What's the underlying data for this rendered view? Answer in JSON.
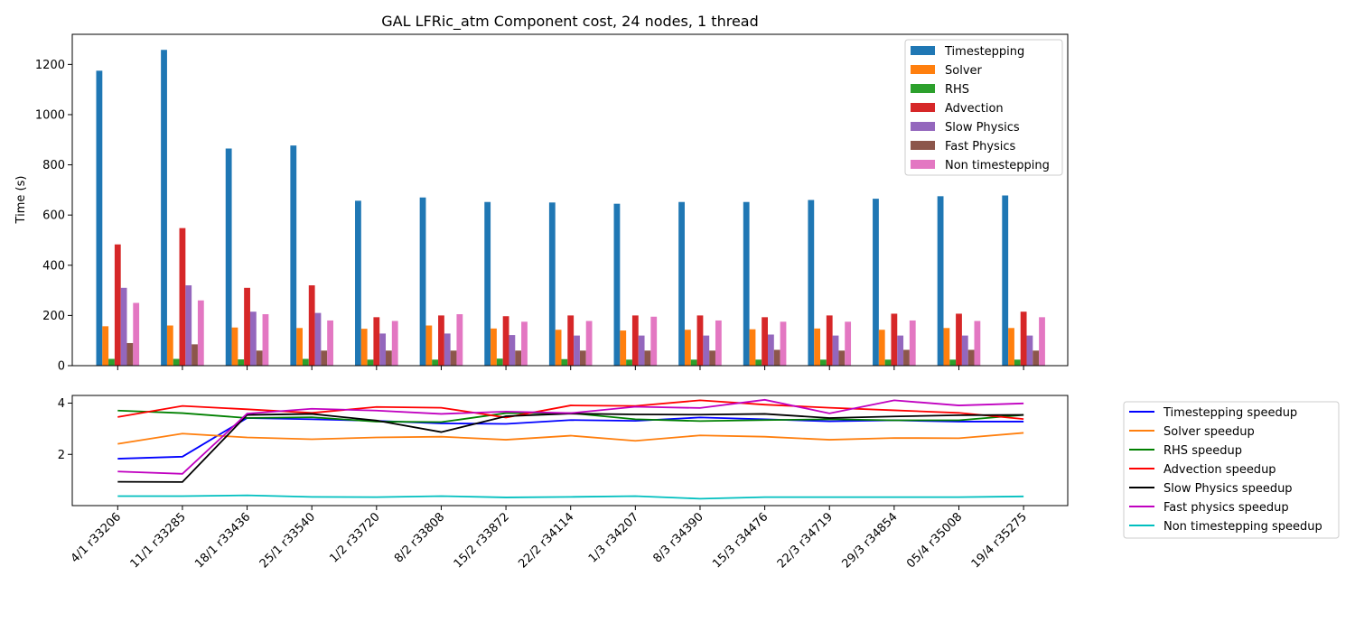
{
  "chart_data": [
    {
      "type": "bar",
      "title": "GAL LFRic_atm Component cost, 24 nodes, 1 thread",
      "xlabel": "",
      "ylabel": "Time (s)",
      "ylim": [
        0,
        1320
      ],
      "yticks": [
        0,
        200,
        400,
        600,
        800,
        1000,
        1200
      ],
      "legend_position": "top-right",
      "grid": false,
      "categories": [
        "4/1 r33206",
        "11/1 r33285",
        "18/1 r33436",
        "25/1 r33540",
        "1/2 r33720",
        "8/2 r33808",
        "15/2 r33872",
        "22/2 r34114",
        "1/3 r34207",
        "8/3 r34390",
        "15/3 r34476",
        "22/3 r34719",
        "29/3 r34854",
        "05/4 r35008",
        "19/4 r35275"
      ],
      "series": [
        {
          "name": "Timestepping",
          "color": "#1f77b4",
          "values": [
            1175,
            1258,
            865,
            877,
            657,
            670,
            652,
            650,
            645,
            652,
            652,
            660,
            665,
            675,
            678
          ]
        },
        {
          "name": "Solver",
          "color": "#ff7f0e",
          "values": [
            157,
            160,
            152,
            150,
            147,
            160,
            148,
            143,
            140,
            143,
            145,
            148,
            143,
            150,
            150
          ]
        },
        {
          "name": "RHS",
          "color": "#2ca02c",
          "values": [
            27,
            27,
            25,
            27,
            24,
            24,
            28,
            26,
            24,
            24,
            24,
            24,
            24,
            24,
            24
          ]
        },
        {
          "name": "Advection",
          "color": "#d62728",
          "values": [
            483,
            548,
            310,
            320,
            193,
            200,
            197,
            200,
            200,
            200,
            193,
            200,
            207,
            207,
            215
          ]
        },
        {
          "name": "Slow Physics",
          "color": "#9467bd",
          "values": [
            310,
            320,
            215,
            210,
            128,
            128,
            122,
            120,
            120,
            120,
            124,
            120,
            120,
            120,
            120
          ]
        },
        {
          "name": "Fast Physics",
          "color": "#8c564b",
          "values": [
            90,
            85,
            60,
            60,
            60,
            60,
            60,
            60,
            60,
            60,
            63,
            60,
            63,
            63,
            60
          ]
        },
        {
          "name": "Non timestepping",
          "color": "#e377c2",
          "values": [
            250,
            260,
            205,
            180,
            178,
            205,
            175,
            178,
            195,
            180,
            175,
            175,
            180,
            178,
            193
          ]
        }
      ]
    },
    {
      "type": "line",
      "title": "",
      "xlabel": "",
      "ylabel": "",
      "ylim": [
        0,
        4.3
      ],
      "yticks": [
        2,
        4
      ],
      "legend_position": "outside right",
      "grid": false,
      "categories": [
        "4/1 r33206",
        "11/1 r33285",
        "18/1 r33436",
        "25/1 r33540",
        "1/2 r33720",
        "8/2 r33808",
        "15/2 r33872",
        "22/2 r34114",
        "1/3 r34207",
        "8/3 r34390",
        "15/3 r34476",
        "22/3 r34719",
        "29/3 r34854",
        "05/4 r35008",
        "19/4 r35275"
      ],
      "series": [
        {
          "name": "Timestepping speedup",
          "color": "#0000ff",
          "values": [
            1.83,
            1.91,
            3.42,
            3.37,
            3.31,
            3.21,
            3.19,
            3.34,
            3.31,
            3.44,
            3.37,
            3.29,
            3.33,
            3.28,
            3.28
          ]
        },
        {
          "name": "Solver speedup",
          "color": "#ff7f0e",
          "values": [
            2.41,
            2.81,
            2.66,
            2.59,
            2.66,
            2.69,
            2.57,
            2.73,
            2.53,
            2.74,
            2.69,
            2.57,
            2.64,
            2.63,
            2.84
          ]
        },
        {
          "name": "RHS speedup",
          "color": "#008000",
          "values": [
            3.71,
            3.61,
            3.42,
            3.45,
            3.28,
            3.26,
            3.61,
            3.61,
            3.37,
            3.3,
            3.34,
            3.37,
            3.33,
            3.33,
            3.54
          ]
        },
        {
          "name": "Advection speedup",
          "color": "#ff0000",
          "values": [
            3.46,
            3.89,
            3.76,
            3.62,
            3.85,
            3.82,
            3.44,
            3.91,
            3.89,
            4.11,
            3.94,
            3.82,
            3.72,
            3.62,
            3.38
          ]
        },
        {
          "name": "Slow Physics speedup",
          "color": "#000000",
          "values": [
            0.93,
            0.92,
            3.54,
            3.58,
            3.32,
            2.87,
            3.49,
            3.59,
            3.56,
            3.55,
            3.58,
            3.42,
            3.48,
            3.53,
            3.54
          ]
        },
        {
          "name": "Fast physics speedup",
          "color": "#c000c0",
          "values": [
            1.33,
            1.24,
            3.59,
            3.78,
            3.71,
            3.58,
            3.67,
            3.61,
            3.86,
            3.81,
            4.13,
            3.6,
            4.11,
            3.91,
            3.99
          ]
        },
        {
          "name": "Non timestepping speedup",
          "color": "#00bfbf",
          "values": [
            0.37,
            0.37,
            0.4,
            0.34,
            0.33,
            0.37,
            0.32,
            0.34,
            0.37,
            0.27,
            0.33,
            0.33,
            0.33,
            0.33,
            0.36
          ]
        }
      ]
    }
  ]
}
